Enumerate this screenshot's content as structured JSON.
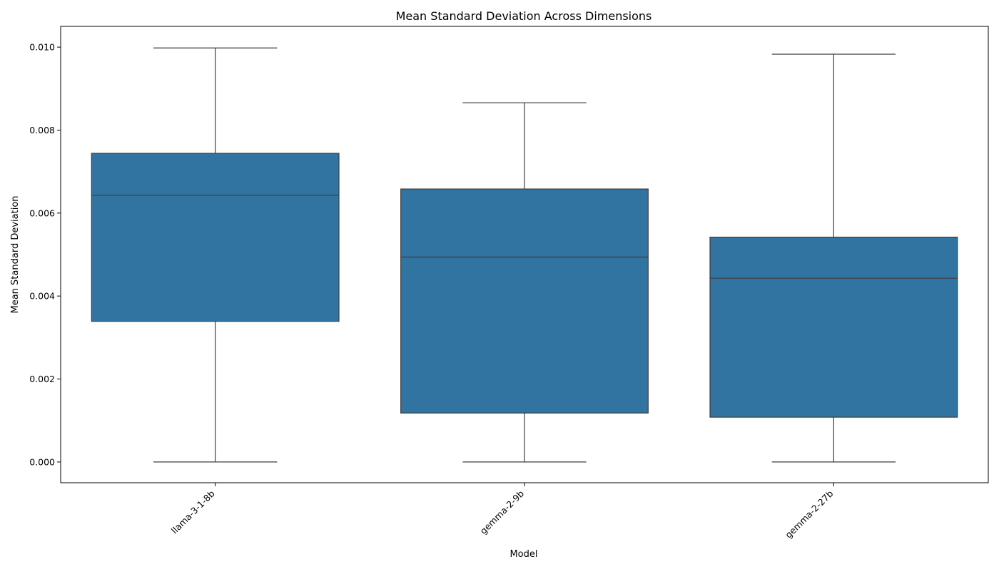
{
  "chart_data": {
    "type": "box",
    "title": "Mean Standard Deviation Across Dimensions",
    "xlabel": "Model",
    "ylabel": "Mean Standard Deviation",
    "ylim": [
      -0.0005,
      0.0105
    ],
    "yticks": [
      0.0,
      0.002,
      0.004,
      0.006,
      0.008,
      0.01
    ],
    "ytick_labels": [
      "0.000",
      "0.002",
      "0.004",
      "0.006",
      "0.008",
      "0.010"
    ],
    "xtick_rotation_deg": 45,
    "grid": false,
    "legend": "none",
    "box_color": "#3274a1",
    "line_color": "#3d3d3d",
    "categories": [
      "llama-3-1-8b",
      "gemma-2-9b",
      "gemma-2-27b"
    ],
    "series": [
      {
        "category": "llama-3-1-8b",
        "min": 0.0,
        "q1": 0.00339,
        "median": 0.00643,
        "q3": 0.00744,
        "max": 0.00998
      },
      {
        "category": "gemma-2-9b",
        "min": 0.0,
        "q1": 0.00118,
        "median": 0.00494,
        "q3": 0.00658,
        "max": 0.00866
      },
      {
        "category": "gemma-2-27b",
        "min": 0.0,
        "q1": 0.00108,
        "median": 0.00443,
        "q3": 0.00542,
        "max": 0.00983
      }
    ]
  }
}
